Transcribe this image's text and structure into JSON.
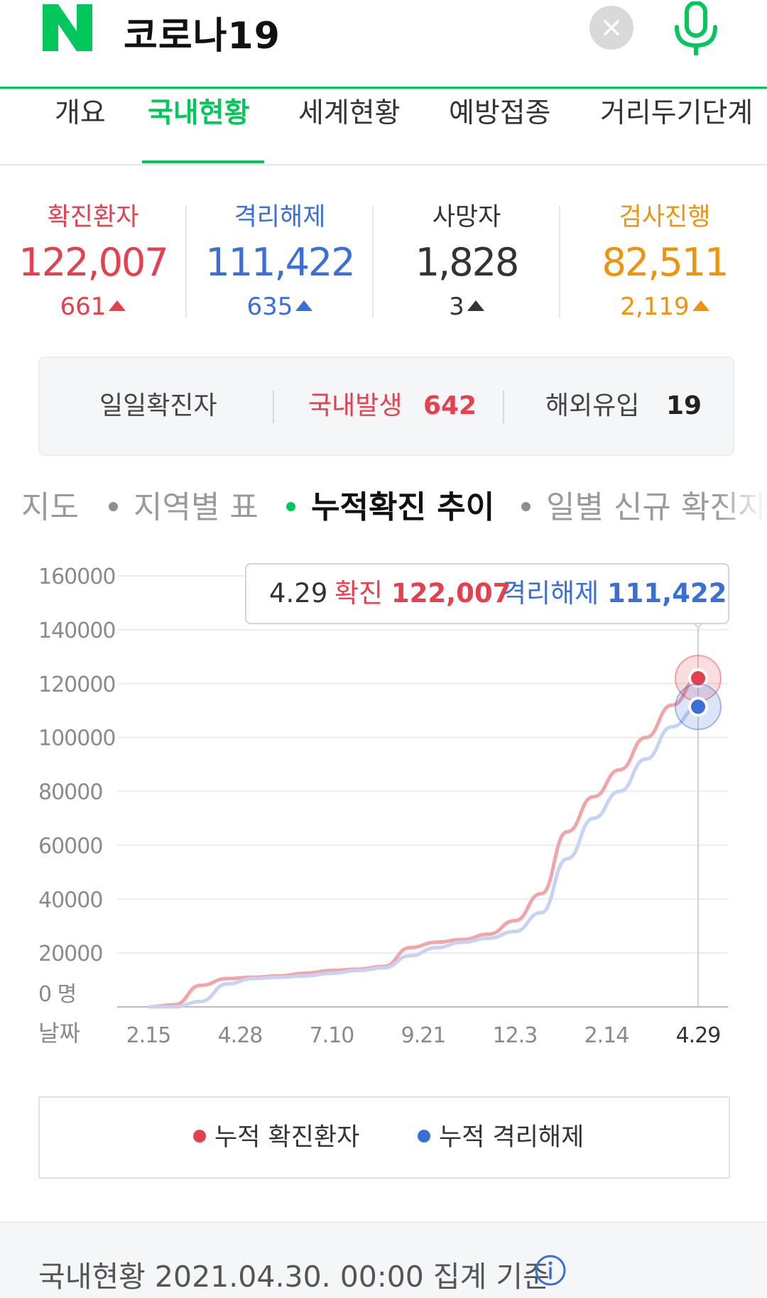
{
  "search": {
    "logo_text": "N",
    "query": "코로나19"
  },
  "tabs": [
    {
      "label": "개요"
    },
    {
      "label": "국내현황"
    },
    {
      "label": "세계현황"
    },
    {
      "label": "예방접종"
    },
    {
      "label": "거리두기단계"
    }
  ],
  "stats": {
    "confirmed": {
      "label": "확진환자",
      "value": "122,007",
      "delta": "661"
    },
    "released": {
      "label": "격리해제",
      "value": "111,422",
      "delta": "635"
    },
    "deaths": {
      "label": "사망자",
      "value": "1,828",
      "delta": "3"
    },
    "testing": {
      "label": "검사진행",
      "value": "82,511",
      "delta": "2,119"
    }
  },
  "daily": {
    "title": "일일확진자",
    "domestic_label": "국내발생",
    "domestic_value": "642",
    "overseas_label": "해외유입",
    "overseas_value": "19"
  },
  "subtabs": [
    {
      "label": "지도"
    },
    {
      "label": "지역별 표"
    },
    {
      "label": "누적확진 추이"
    },
    {
      "label": "일별 신규 확진자"
    }
  ],
  "tooltip": {
    "date": "4.29",
    "confirmed_label": "확진",
    "confirmed_value": "122,007",
    "released_label": "격리해제",
    "released_value": "111,422"
  },
  "legend": [
    {
      "label": "누적 확진환자",
      "color": "#e5404d"
    },
    {
      "label": "누적 격리해제",
      "color": "#3a6fd8"
    }
  ],
  "footer": {
    "text": "국내현황 2021.04.30. 00:00 집계 기준"
  },
  "colors": {
    "brand": "#03c75a",
    "confirmed": "#e5404d",
    "released": "#3a6fd8",
    "deaths": "#333333",
    "testing": "#f0930c"
  },
  "chart_data": {
    "type": "line",
    "y_ticks": [
      "160000",
      "140000",
      "120000",
      "100000",
      "80000",
      "60000",
      "40000",
      "20000",
      "0 명"
    ],
    "x_axis_label": "날짜",
    "x_ticks": [
      "2.15",
      "4.28",
      "7.10",
      "9.21",
      "12.3",
      "2.14",
      "4.29"
    ],
    "ylim": [
      0,
      160000
    ],
    "grid": true,
    "legend_placement": "bottom",
    "series": [
      {
        "name": "누적 확진환자",
        "color": "#e5404d",
        "values": [
          0,
          800,
          8000,
          10500,
          11000,
          11500,
          12500,
          13500,
          14000,
          15000,
          22000,
          24000,
          25000,
          27000,
          32000,
          42000,
          65000,
          78000,
          88000,
          100000,
          112000,
          122007
        ]
      },
      {
        "name": "누적 격리해제",
        "color": "#3a6fd8",
        "values": [
          0,
          0,
          2000,
          8500,
          10500,
          11000,
          11500,
          12500,
          13500,
          14500,
          19000,
          22000,
          24000,
          25500,
          28000,
          35000,
          55000,
          70000,
          80000,
          92000,
          104000,
          111422
        ]
      }
    ]
  }
}
